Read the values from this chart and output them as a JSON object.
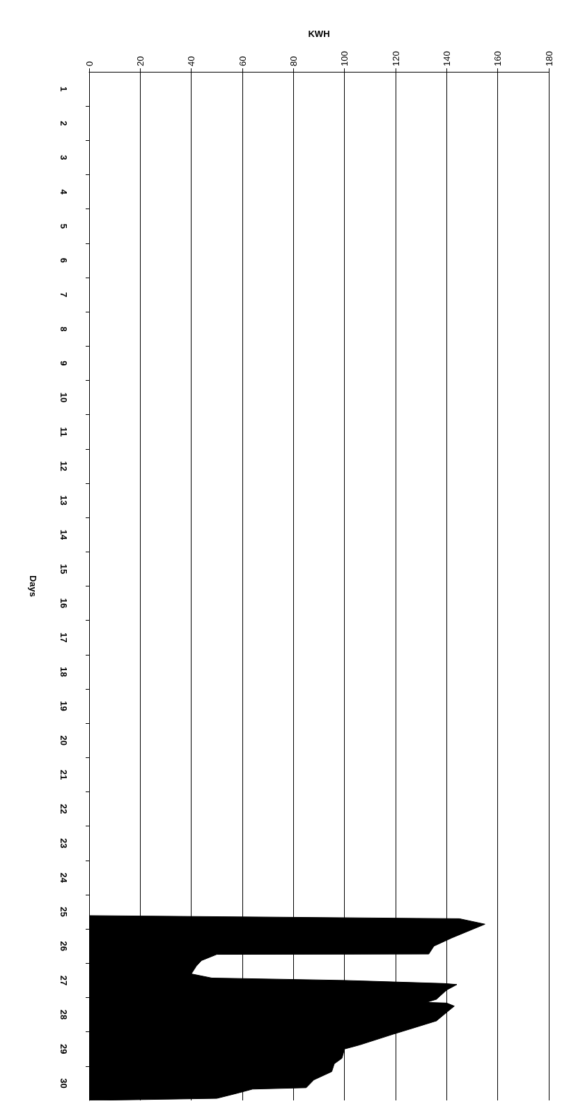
{
  "chart_data": {
    "type": "area",
    "orientation": "horizontal",
    "xlabel": "KWH",
    "ylabel": "Days",
    "color": "#000000",
    "grid": "x",
    "x": [
      25.11,
      25.2,
      25.36,
      25.76,
      26.0,
      26.23,
      26.24,
      26.42,
      26.58,
      26.81,
      26.93,
      27.0,
      27.09,
      27.12,
      27.28,
      27.55,
      27.64,
      27.66,
      27.75,
      27.87,
      28.18,
      28.41,
      28.57,
      28.88,
      29.0,
      29.27,
      29.43,
      29.66,
      29.9,
      30.13,
      30.17,
      30.29,
      30.44,
      30.5
    ],
    "values": [
      0,
      145,
      155,
      142,
      135,
      133,
      50,
      44,
      42,
      40,
      48,
      100,
      139,
      144,
      140,
      136,
      132,
      140,
      143,
      141,
      136,
      126,
      119,
      106,
      100,
      99,
      96,
      95,
      88,
      85,
      64,
      58,
      50,
      0
    ],
    "xlim": [
      0,
      180
    ],
    "xticks": [
      0,
      20,
      40,
      60,
      80,
      100,
      120,
      140,
      160,
      180
    ],
    "ylim": [
      30.5,
      0.5
    ],
    "yticks": [
      1,
      2,
      3,
      4,
      5,
      6,
      7,
      8,
      9,
      10,
      11,
      12,
      13,
      14,
      15,
      16,
      17,
      18,
      19,
      20,
      21,
      22,
      23,
      24,
      25,
      26,
      27,
      28,
      29,
      30,
      {
        "value": 1.5,
        "label": null
      },
      {
        "value": 2.5,
        "label": null
      },
      {
        "value": 3.5,
        "label": null
      },
      {
        "value": 4.5,
        "label": null
      },
      {
        "value": 5.5,
        "label": null
      },
      {
        "value": 6.5,
        "label": null
      },
      {
        "value": 7.5,
        "label": null
      },
      {
        "value": 8.5,
        "label": null
      },
      {
        "value": 9.5,
        "label": null
      },
      {
        "value": 10.5,
        "label": null
      },
      {
        "value": 11.5,
        "label": null
      },
      {
        "value": 12.5,
        "label": null
      },
      {
        "value": 13.5,
        "label": null
      },
      {
        "value": 14.5,
        "label": null
      },
      {
        "value": 15.5,
        "label": null
      },
      {
        "value": 16.5,
        "label": null
      },
      {
        "value": 17.5,
        "label": null
      },
      {
        "value": 18.5,
        "label": null
      },
      {
        "value": 19.5,
        "label": null
      },
      {
        "value": 20.5,
        "label": null
      },
      {
        "value": 21.5,
        "label": null
      },
      {
        "value": 22.5,
        "label": null
      },
      {
        "value": 23.5,
        "label": null
      },
      {
        "value": 24.5,
        "label": null
      },
      {
        "value": 25.5,
        "label": null
      },
      {
        "value": 26.5,
        "label": null
      },
      {
        "value": 27.5,
        "label": null
      },
      {
        "value": 28.5,
        "label": null
      },
      {
        "value": 29.5,
        "label": null
      }
    ]
  }
}
